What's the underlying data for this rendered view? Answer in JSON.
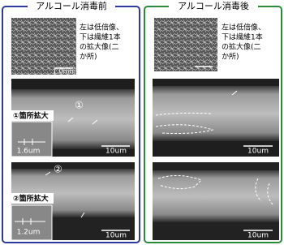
{
  "left_panel": {
    "title": "アルコール消毒前",
    "note_lines": [
      "左は低倍像、",
      "下は繊維1本",
      "の拡大像(二",
      "か所)"
    ],
    "low_mag_scale": "1.0mm",
    "image1": {
      "marker": "①",
      "inset_label": "①箇所拡大",
      "inset_scale": "1.6um",
      "scale": "10um"
    },
    "image2": {
      "marker": "②",
      "inset_label": "②箇所拡大",
      "inset_scale": "1.2um",
      "scale": "10um"
    }
  },
  "right_panel": {
    "title": "アルコール消毒後",
    "note_lines": [
      "左は低倍像、",
      "下は繊維1本",
      "の拡大像(二",
      "か所)"
    ],
    "image1": {
      "scale": "10um"
    },
    "image2": {
      "scale": "10um"
    }
  }
}
